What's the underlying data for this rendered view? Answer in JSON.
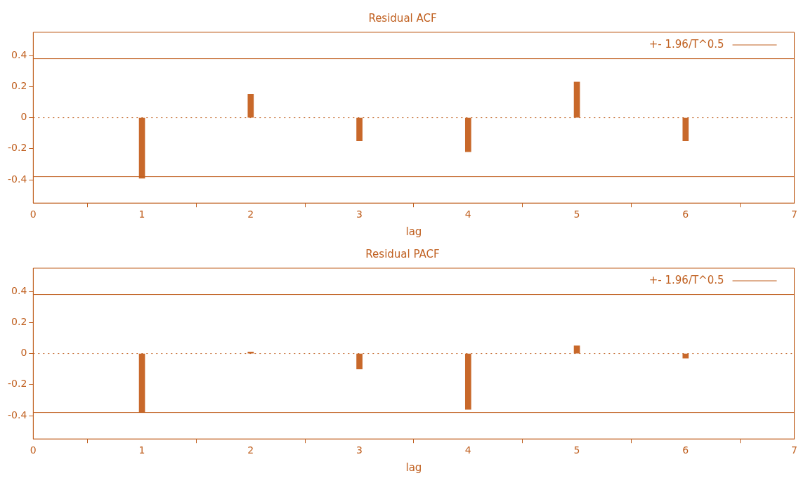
{
  "chart_data": [
    {
      "type": "bar",
      "title": "Residual ACF",
      "xlabel": "lag",
      "x": [
        1,
        2,
        3,
        4,
        5,
        6
      ],
      "series": [
        {
          "color": "#c8682a",
          "values": [
            -0.39,
            0.15,
            -0.15,
            -0.22,
            0.23,
            -0.15
          ]
        }
      ],
      "xlim": [
        0,
        7
      ],
      "xticks": [
        0,
        1,
        2,
        3,
        4,
        5,
        6,
        7
      ],
      "ylim": [
        -0.55,
        0.55
      ],
      "yticks": [
        -0.4,
        -0.2,
        0,
        0.2,
        0.4
      ],
      "grid": false,
      "ref_lines": [
        {
          "axis": "y",
          "value": 0.38,
          "label": "+- 1.96/T^0.5",
          "color": "#c06020",
          "line_style": "solid"
        },
        {
          "axis": "y",
          "value": -0.38,
          "color": "#c06020",
          "line_style": "solid"
        },
        {
          "axis": "y",
          "value": 0,
          "color": "#c06020",
          "line_style": "dotted"
        }
      ]
    },
    {
      "type": "bar",
      "title": "Residual PACF",
      "xlabel": "lag",
      "x": [
        1,
        2,
        3,
        4,
        5,
        6
      ],
      "series": [
        {
          "color": "#c8682a",
          "values": [
            -0.38,
            0.01,
            -0.1,
            -0.36,
            0.05,
            -0.03
          ]
        }
      ],
      "xlim": [
        0,
        7
      ],
      "xticks": [
        0,
        1,
        2,
        3,
        4,
        5,
        6,
        7
      ],
      "ylim": [
        -0.55,
        0.55
      ],
      "yticks": [
        -0.4,
        -0.2,
        0,
        0.2,
        0.4
      ],
      "grid": false,
      "ref_lines": [
        {
          "axis": "y",
          "value": 0.38,
          "label": "+- 1.96/T^0.5",
          "color": "#c06020",
          "line_style": "solid"
        },
        {
          "axis": "y",
          "value": -0.38,
          "color": "#c06020",
          "line_style": "solid"
        },
        {
          "axis": "y",
          "value": 0,
          "color": "#c06020",
          "line_style": "dotted"
        }
      ]
    }
  ]
}
